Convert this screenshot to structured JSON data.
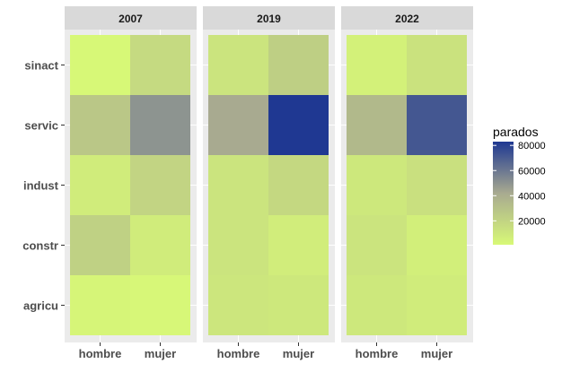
{
  "chart_data": {
    "type": "heatmap",
    "facets": [
      "2007",
      "2019",
      "2022"
    ],
    "x_categories": [
      "hombre",
      "mujer"
    ],
    "y_categories": [
      "sinact",
      "servic",
      "indust",
      "constr",
      "agricu"
    ],
    "values": {
      "2007": {
        "hombre": {
          "sinact": 1500,
          "servic": 27000,
          "indust": 8000,
          "constr": 22000,
          "agricu": 3000
        },
        "mujer": {
          "sinact": 17000,
          "servic": 50000,
          "indust": 20000,
          "constr": 8000,
          "agricu": 2000
        }
      },
      "2019": {
        "hombre": {
          "sinact": 12000,
          "servic": 42000,
          "indust": 12000,
          "constr": 12000,
          "agricu": 11000
        },
        "mujer": {
          "sinact": 23000,
          "servic": 83000,
          "indust": 18000,
          "constr": 7000,
          "agricu": 10000
        }
      },
      "2022": {
        "hombre": {
          "sinact": 5000,
          "servic": 34000,
          "indust": 10000,
          "constr": 12000,
          "agricu": 10000
        },
        "mujer": {
          "sinact": 13000,
          "servic": 72000,
          "indust": 14000,
          "constr": 6000,
          "agricu": 8000
        }
      }
    },
    "legend": {
      "title": "parados",
      "breaks": [
        20000,
        40000,
        60000,
        80000
      ],
      "break_labels": [
        "20000",
        "40000",
        "60000",
        "80000"
      ],
      "limits": [
        1000,
        83000
      ],
      "color_low": "#d8f977",
      "color_mid": "#a8aa90",
      "color_high": "#1f3892"
    },
    "grid": true,
    "legend_position": "right"
  }
}
